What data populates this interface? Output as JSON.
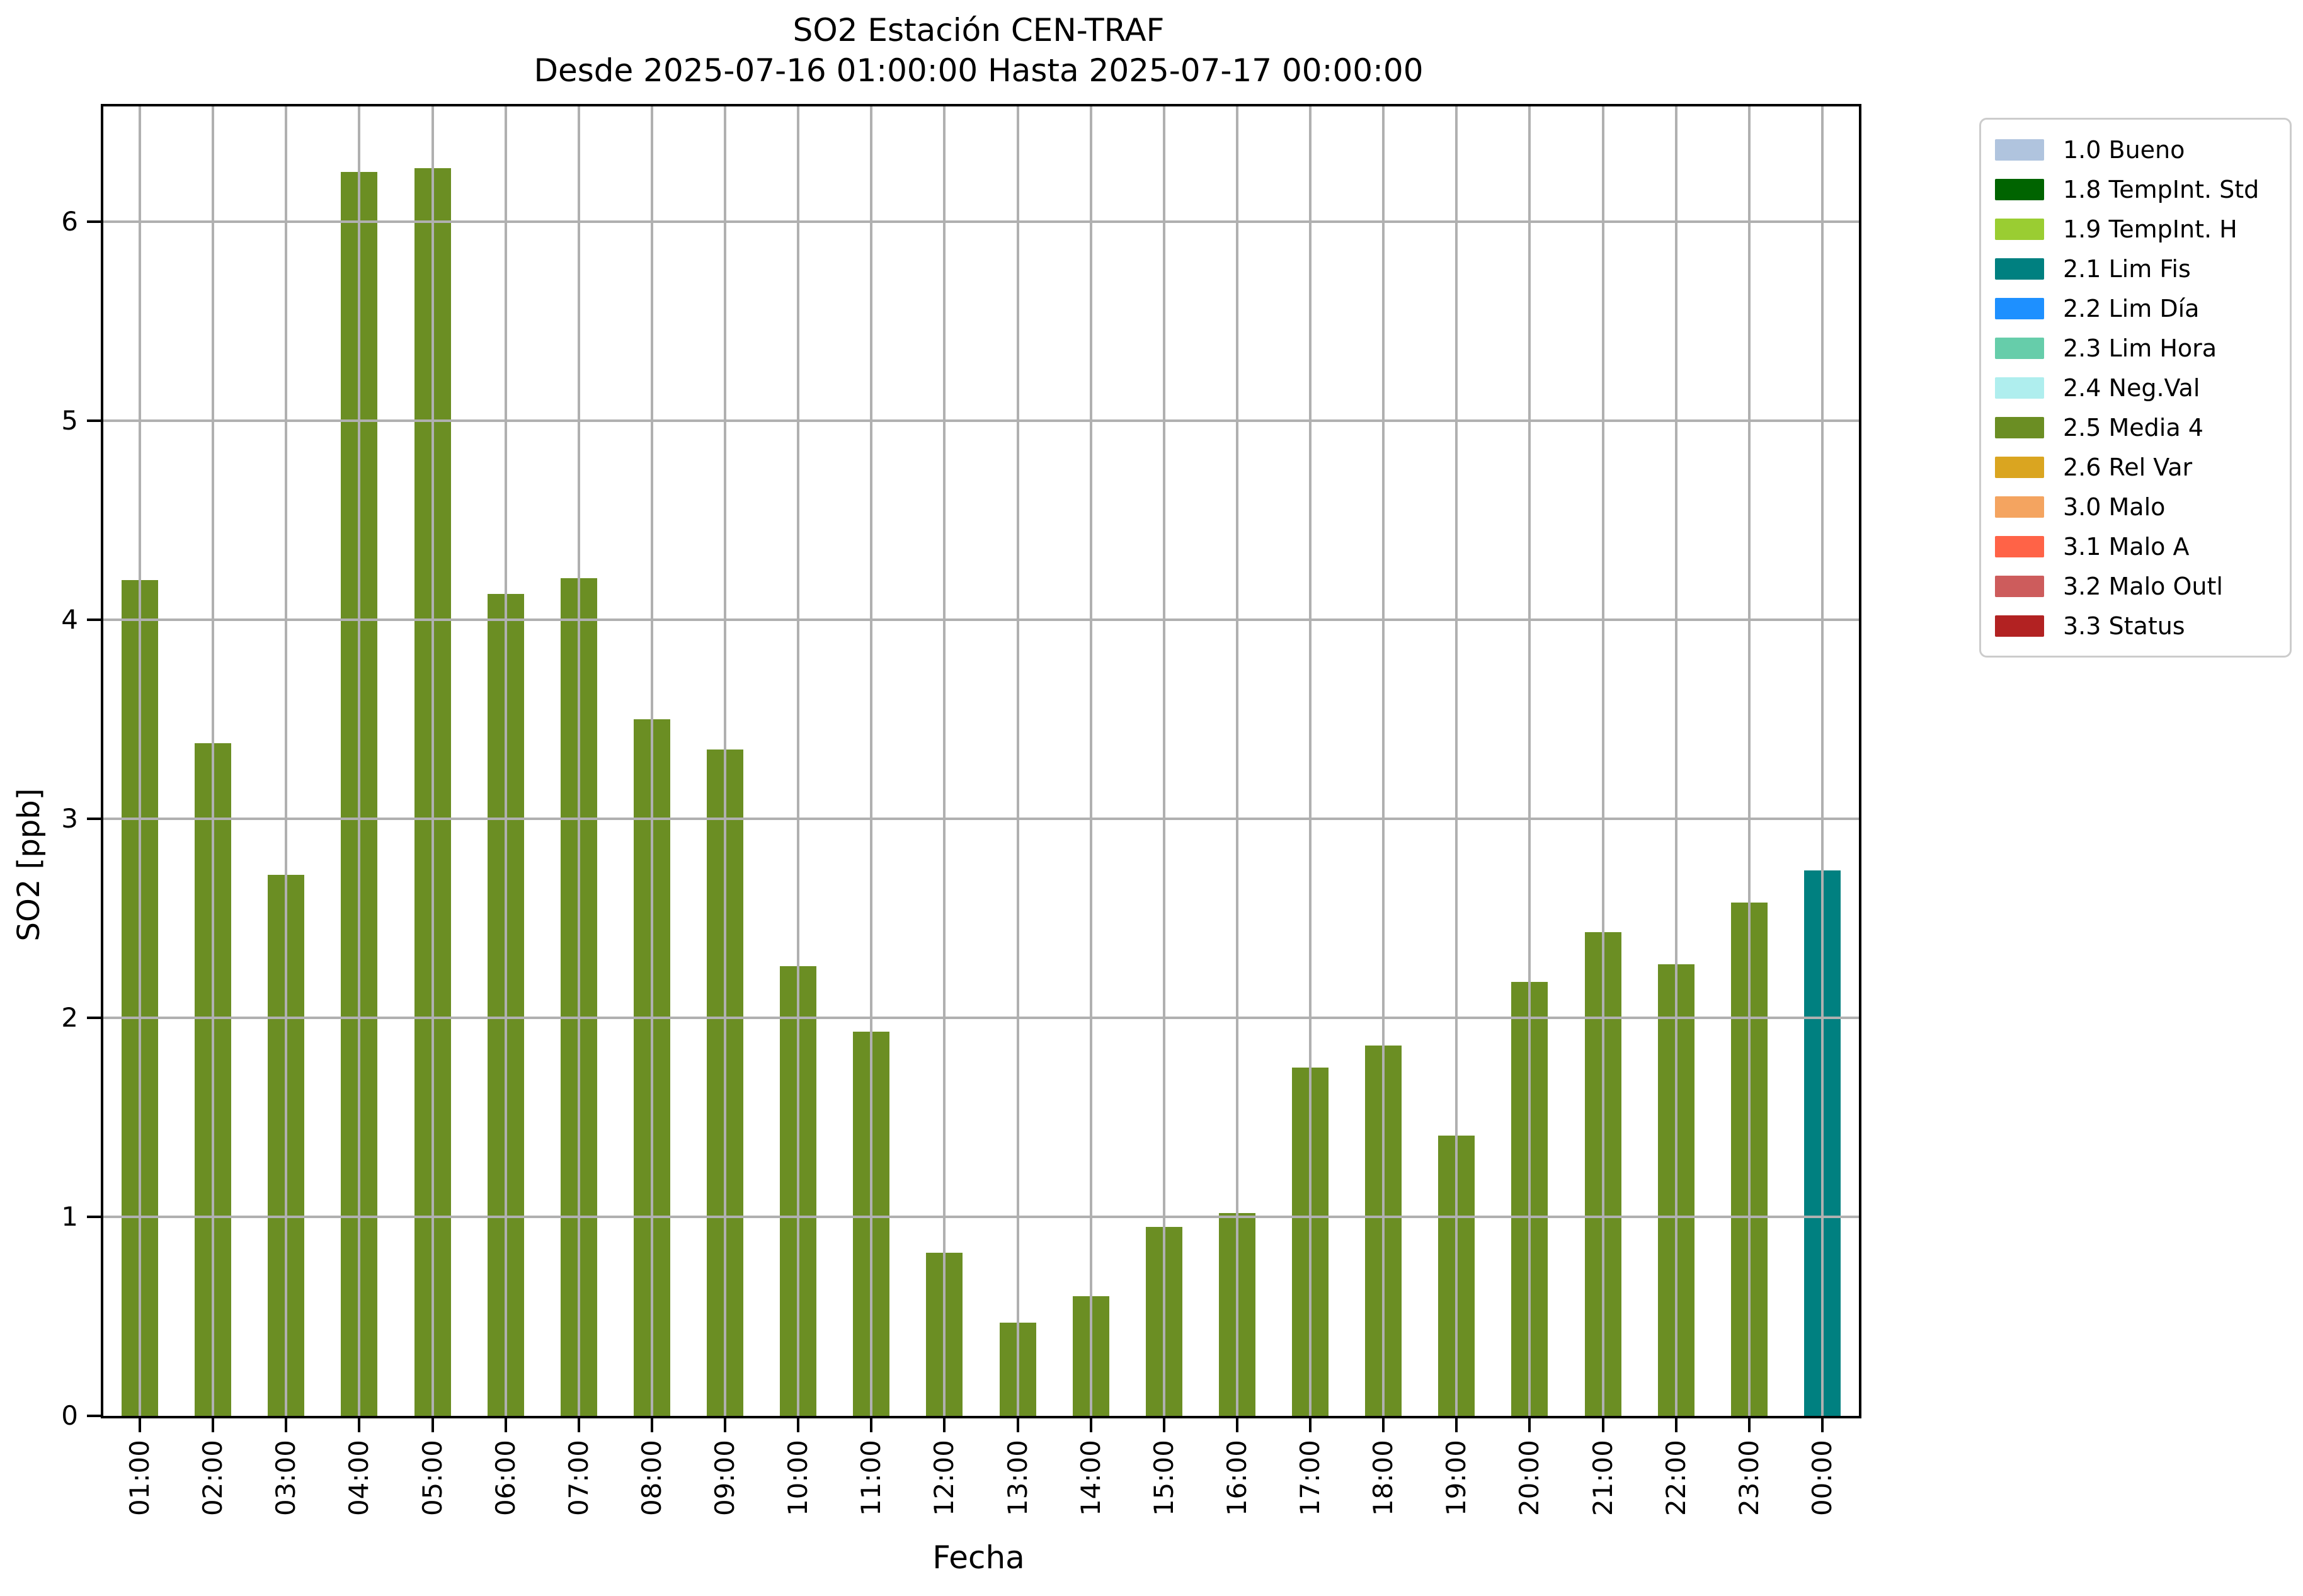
{
  "title": {
    "line1": "SO2 Estación CEN-TRAF",
    "line2": "Desde 2025-07-16 01:00:00 Hasta 2025-07-17 00:00:00"
  },
  "axes": {
    "xlabel": "Fecha",
    "ylabel": "SO2 [ppb]",
    "yticks": [
      "0",
      "1",
      "2",
      "3",
      "4",
      "5",
      "6"
    ]
  },
  "chart_data": {
    "type": "bar",
    "title": "SO2 Estación CEN-TRAF",
    "subtitle": "Desde 2025-07-16 01:00:00 Hasta 2025-07-17 00:00:00",
    "xlabel": "Fecha",
    "ylabel": "SO2 [ppb]",
    "ylim": [
      0,
      6.58
    ],
    "grid": true,
    "legend_position": "upper right outside",
    "categories": [
      "01:00",
      "02:00",
      "03:00",
      "04:00",
      "05:00",
      "06:00",
      "07:00",
      "08:00",
      "09:00",
      "10:00",
      "11:00",
      "12:00",
      "13:00",
      "14:00",
      "15:00",
      "16:00",
      "17:00",
      "18:00",
      "19:00",
      "20:00",
      "21:00",
      "22:00",
      "23:00",
      "00:00"
    ],
    "values": [
      4.2,
      3.38,
      2.72,
      6.25,
      6.27,
      4.13,
      4.21,
      3.5,
      3.35,
      2.26,
      1.93,
      0.82,
      0.47,
      0.6,
      0.95,
      1.02,
      1.75,
      1.86,
      1.41,
      2.18,
      2.43,
      2.27,
      2.58,
      2.74
    ],
    "bar_flags": [
      "2.5 Media 4",
      "2.5 Media 4",
      "2.5 Media 4",
      "2.5 Media 4",
      "2.5 Media 4",
      "2.5 Media 4",
      "2.5 Media 4",
      "2.5 Media 4",
      "2.5 Media 4",
      "2.5 Media 4",
      "2.5 Media 4",
      "2.5 Media 4",
      "2.5 Media 4",
      "2.5 Media 4",
      "2.5 Media 4",
      "2.5 Media 4",
      "2.5 Media 4",
      "2.5 Media 4",
      "2.5 Media 4",
      "2.5 Media 4",
      "2.5 Media 4",
      "2.5 Media 4",
      "2.5 Media 4",
      "2.1 Lim Fis"
    ],
    "flag_colors": {
      "2.5 Media 4": "#6B8E23",
      "2.1 Lim Fis": "#008080"
    }
  },
  "legend": {
    "entries": [
      {
        "label": "1.0 Bueno",
        "color": "#B0C4DE"
      },
      {
        "label": "1.8 TempInt. Std",
        "color": "#006400"
      },
      {
        "label": "1.9 TempInt. H",
        "color": "#9ACD32"
      },
      {
        "label": "2.1 Lim Fis",
        "color": "#008080"
      },
      {
        "label": "2.2 Lim Día",
        "color": "#1E90FF"
      },
      {
        "label": "2.3 Lim Hora",
        "color": "#66CDAA"
      },
      {
        "label": "2.4 Neg.Val",
        "color": "#AFEEEE"
      },
      {
        "label": "2.5 Media 4",
        "color": "#6B8E23"
      },
      {
        "label": "2.6 Rel Var",
        "color": "#DAA520"
      },
      {
        "label": "3.0 Malo",
        "color": "#F4A460"
      },
      {
        "label": "3.1 Malo A",
        "color": "#FF6347"
      },
      {
        "label": "3.2 Malo Outl",
        "color": "#CD5C5C"
      },
      {
        "label": "3.3 Status",
        "color": "#B22222"
      }
    ]
  },
  "colors": {
    "grid": "#b0b0b0",
    "spine": "#000000",
    "background": "#ffffff"
  }
}
